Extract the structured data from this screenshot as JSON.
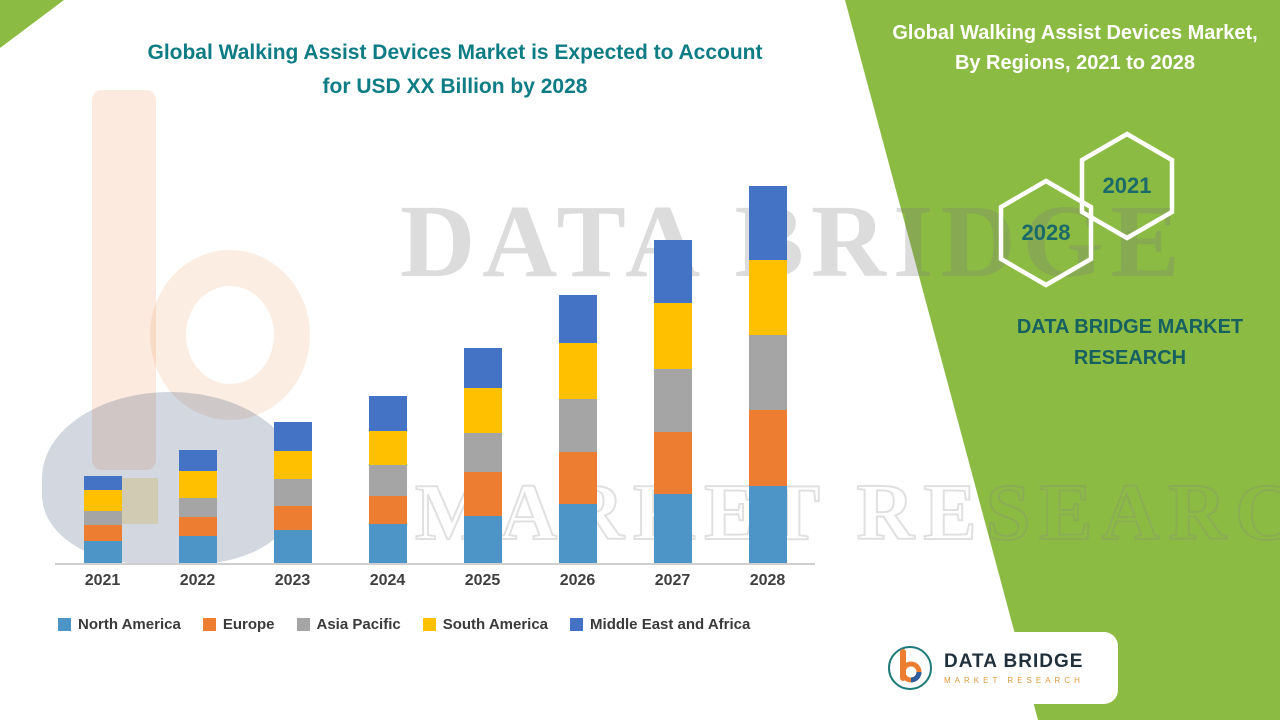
{
  "header": {
    "main_title_line1": "Global Walking Assist Devices Market is Expected to Account",
    "main_title_line2": "for USD XX Billion by 2028"
  },
  "side_panel": {
    "title": "Global Walking Assist Devices Market, By Regions, 2021 to 2028",
    "hexagon_years": [
      "2021",
      "2028"
    ],
    "brand_text_line1": "DATA BRIDGE MARKET",
    "brand_text_line2": "RESEARCH",
    "background_color": "#8cbb44",
    "title_color": "#ffffff",
    "accent_text_color": "#176868"
  },
  "watermark": {
    "line1": "DATA BRIDGE",
    "line2": "MARKET RESEARCH"
  },
  "logo_card": {
    "brand_name": "DATA BRIDGE",
    "tagline": "MARKET RESEARCH"
  },
  "chart_data": {
    "type": "bar",
    "stacked": true,
    "title": "Global Walking Assist Devices Market is Expected to Account for USD XX Billion by 2028",
    "categories": [
      "2021",
      "2022",
      "2023",
      "2024",
      "2025",
      "2026",
      "2027",
      "2028"
    ],
    "series": [
      {
        "name": "North America",
        "color": "#4e95c7",
        "values": [
          22,
          27,
          33,
          40,
          48,
          60,
          70,
          78
        ]
      },
      {
        "name": "Europe",
        "color": "#ed7d31",
        "values": [
          16,
          19,
          24,
          28,
          45,
          53,
          63,
          77
        ]
      },
      {
        "name": "Asia Pacific",
        "color": "#a5a5a5",
        "values": [
          14,
          19,
          27,
          31,
          40,
          54,
          64,
          76
        ]
      },
      {
        "name": "South America",
        "color": "#ffc000",
        "values": [
          21,
          27,
          28,
          34,
          46,
          57,
          67,
          76
        ]
      },
      {
        "name": "Middle East and Africa",
        "color": "#4472c4",
        "values": [
          14,
          21,
          29,
          35,
          41,
          49,
          64,
          75
        ]
      }
    ],
    "xlabel": "",
    "ylabel": "",
    "ylim": [
      0,
      390
    ],
    "y_axis_visible": false,
    "gridlines": false,
    "legend_position": "bottom",
    "units": "relative estimates (value axis not labeled in source; totals shown as USD XX Billion)"
  }
}
